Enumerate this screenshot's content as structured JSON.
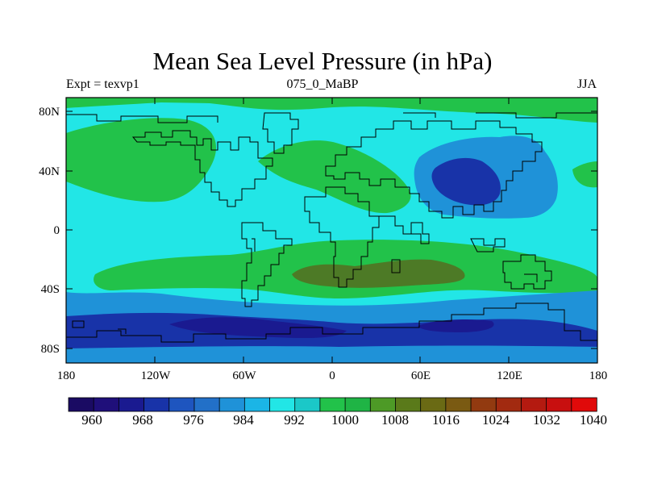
{
  "title": "Mean Sea Level Pressure (in hPa)",
  "left_label": "Expt = texvp1",
  "center_label": "075_0_MaBP",
  "right_label": "JJA",
  "lat_labels": [
    "80N",
    "40N",
    "0",
    "40S",
    "80S"
  ],
  "lon_labels": [
    "180",
    "120W",
    "60W",
    "0",
    "60E",
    "120E",
    "180"
  ],
  "colorbar": {
    "labels": [
      "960",
      "968",
      "976",
      "984",
      "992",
      "1000",
      "1008",
      "1016",
      "1024",
      "1032",
      "1040"
    ],
    "colors": [
      "#1a0b63",
      "#1f0f7a",
      "#1a1a90",
      "#1833a8",
      "#1e55bf",
      "#2270c8",
      "#1f92d8",
      "#1bb5e6",
      "#22e6e6",
      "#1bc8c8",
      "#22c24a",
      "#1fb445",
      "#4d9a26",
      "#5a7a1a",
      "#6a6a14",
      "#7a5a12",
      "#923a10",
      "#a22a10",
      "#b41a10",
      "#c80f0f",
      "#e00a0a"
    ]
  },
  "colors": {
    "ocean_high": "#22e6e6",
    "green": "#22c24a",
    "olive": "#4d7a26",
    "blue_mid": "#1f92d8",
    "blue_deep": "#1833a8",
    "blue_darkest": "#1a1a90",
    "coast": "#000000"
  }
}
